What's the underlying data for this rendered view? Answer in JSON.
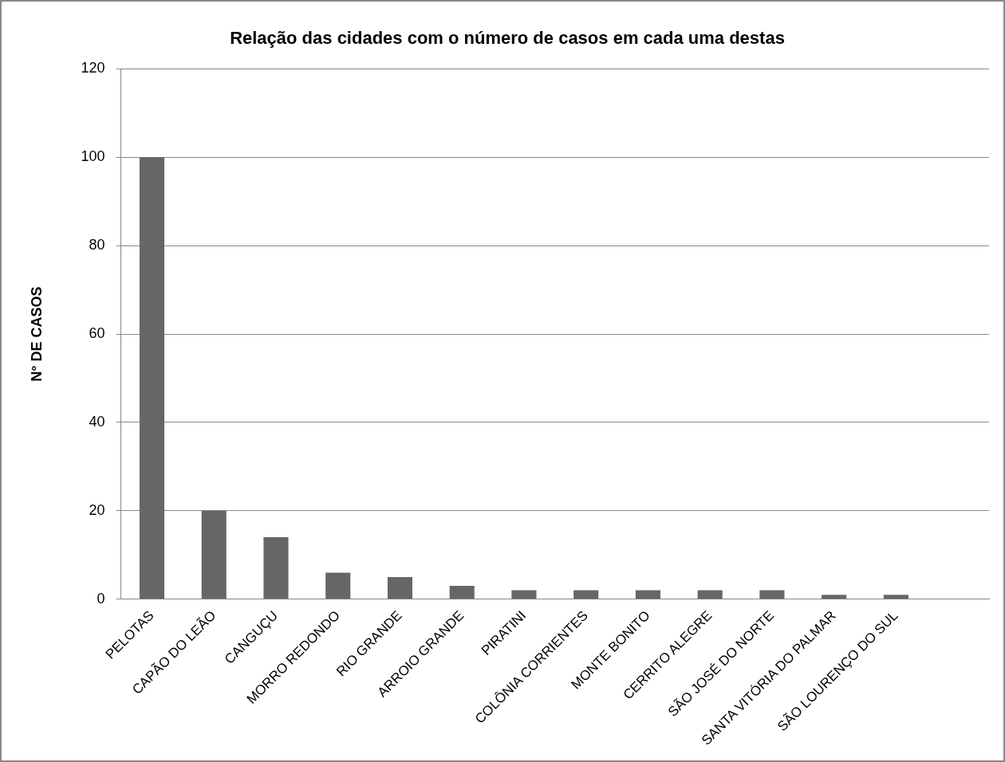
{
  "chart_data": {
    "type": "bar",
    "title": "Relação das cidades com o número de casos em cada uma destas",
    "ylabel": "N° DE CASOS",
    "categories": [
      "PELOTAS",
      "CAPÃO DO LEÃO",
      "CANGUÇU",
      "MORRO REDONDO",
      "RIO GRANDE",
      "ARROIO GRANDE",
      "PIRATINI",
      "COLÔNIA CORRIENTES",
      "MONTE BONITO",
      "CERRITO ALEGRE",
      "SÃO JOSÉ DO NORTE",
      "SANTA VITÓRIA DO PALMAR",
      "SÃO LOURENÇO DO SUL",
      null
    ],
    "values": [
      100,
      20,
      14,
      6,
      5,
      3,
      2,
      2,
      2,
      2,
      2,
      1,
      1,
      null
    ],
    "color": "#666666",
    "ylim": [
      0,
      120
    ],
    "yticks": [
      0,
      20,
      40,
      60,
      80,
      100,
      120
    ],
    "grid": "y",
    "legend": false
  }
}
